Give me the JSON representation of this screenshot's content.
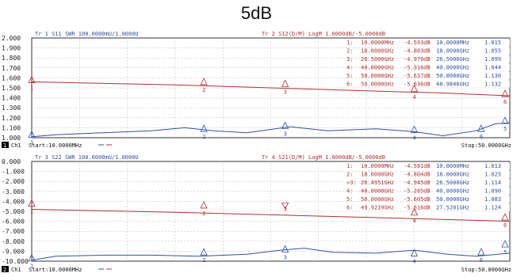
{
  "title": "5dB",
  "panels": [
    {
      "channel_num": "1",
      "channel_text": "Ch1",
      "start_text": "Start:10.0000MHz",
      "stop_text": "Stop:50.0000GHz",
      "yticks": [
        "2.000",
        "1.900",
        "1.800",
        "1.700",
        "1.600",
        "1.500",
        "1.400",
        "1.300",
        "1.200",
        "1.100",
        "1.000"
      ],
      "tr_left": "Tr 1  S11 SWR 100.0000mU/1.0000U",
      "tr_right": "Tr 2  S12(D/M) LogM 1.0000dB/-5.0000dB",
      "markers_mid": [
        {
          "idx": "1:",
          "freq": "10.0000MHz",
          "val": "-4.593dB"
        },
        {
          "idx": "2:",
          "freq": "18.0000GHz",
          "val": "-4.803dB"
        },
        {
          "idx": "3:",
          "freq": "26.5000GHz",
          "val": "-4.970dB"
        },
        {
          "idx": "4:",
          "freq": "40.0000GHz",
          "val": "-5.316dB"
        },
        {
          "idx": "5:",
          "freq": "50.0000GHz",
          "val": "-5.637dB"
        },
        {
          "idx": "6:",
          "freq": "50.0000GHz",
          "val": "-5.636dB"
        }
      ],
      "markers_right": [
        {
          "freq": "10.0000MHz",
          "val": "1.015"
        },
        {
          "freq": "18.0000GHz",
          "val": "1.055"
        },
        {
          "freq": "26.5000GHz",
          "val": "1.099"
        },
        {
          "freq": "40.0000GHz",
          "val": "1.044"
        },
        {
          "freq": "50.0000GHz",
          "val": "1.130"
        },
        {
          "freq": "48.9846GHz",
          "val": "1.132"
        }
      ]
    },
    {
      "channel_num": "2",
      "channel_text": "Ch1",
      "start_text": "Start:10.0000MHz",
      "stop_text": "Stop:50.0000GHz",
      "yticks": [
        "0.000",
        "-1.000",
        "-2.000",
        "-3.000",
        "-4.000",
        "-5.000",
        "-6.000",
        "-7.000",
        "-8.000",
        "-9.000",
        "-10.000"
      ],
      "tr_left": "Tr 3  S22 SWR 100.0000mU/1.0000U",
      "tr_right": "Tr 4  S21(D/M) LogM 1.0000dB/-5.0000dB",
      "markers_mid": [
        {
          "idx": "1:",
          "freq": "10.0000MHz",
          "val": "-4.581dB"
        },
        {
          "idx": "2:",
          "freq": "18.0000GHz",
          "val": "-4.804dB"
        },
        {
          "idx": ">3:",
          "freq": "26.4951GHz",
          "val": "-4.945dB"
        },
        {
          "idx": "4:",
          "freq": "40.0000GHz",
          "val": "-5.285dB"
        },
        {
          "idx": "5:",
          "freq": "50.0000GHz",
          "val": "-5.605dB"
        },
        {
          "idx": "6:",
          "freq": "49.9219GHz",
          "val": "-5.616dB"
        }
      ],
      "markers_right": [
        {
          "freq": "10.0000MHz",
          "val": "1.013"
        },
        {
          "freq": "18.0000GHz",
          "val": "1.025"
        },
        {
          "freq": "26.5000GHz",
          "val": "1.114"
        },
        {
          "freq": "40.0000GHz",
          "val": "1.090"
        },
        {
          "freq": "50.0000GHz",
          "val": "1.083"
        },
        {
          "freq": "27.5201GHz",
          "val": "1.124"
        }
      ]
    }
  ],
  "colors": {
    "trace_red": "#b03030",
    "trace_blue": "#3050a0",
    "grid": "#b8b8b8",
    "frame": "#000000",
    "ch_badge": "#000000"
  }
}
